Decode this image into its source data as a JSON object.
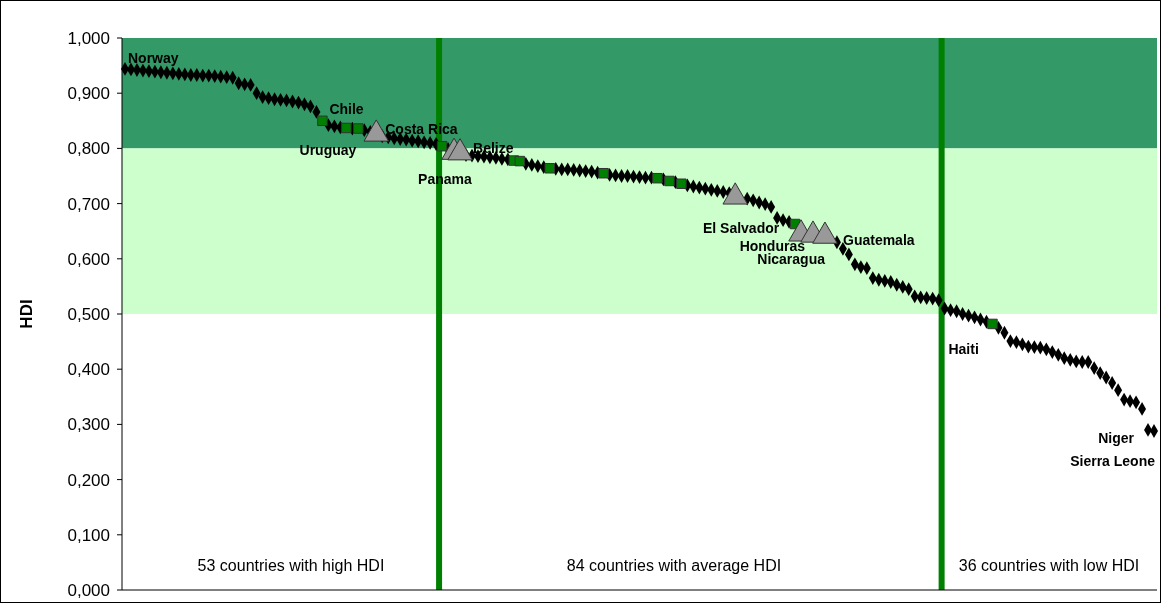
{
  "chart_data": {
    "type": "scatter",
    "ylabel": "HDI",
    "tick_labels": "y",
    "ylim": [
      0,
      1
    ],
    "yticks": [
      {
        "value": 0,
        "label": "0,000"
      },
      {
        "value": 0.1,
        "label": "0,100"
      },
      {
        "value": 0.2,
        "label": "0,200"
      },
      {
        "value": 0.3,
        "label": "0,300"
      },
      {
        "value": 0.4,
        "label": "0,400"
      },
      {
        "value": 0.5,
        "label": "0,500"
      },
      {
        "value": 0.6,
        "label": "0,600"
      },
      {
        "value": 0.7,
        "label": "0,700"
      },
      {
        "value": 0.8,
        "label": "0,800"
      },
      {
        "value": 0.9,
        "label": "0,900"
      },
      {
        "value": 1,
        "label": "1,000"
      }
    ],
    "bands": [
      {
        "axis": "y",
        "from": 0.8,
        "to": 1,
        "color": "#339966"
      },
      {
        "axis": "y",
        "from": 0.5,
        "to": 0.8,
        "color": "#ccffcc"
      }
    ],
    "categories": [
      null,
      null,
      null,
      null,
      null,
      null,
      null,
      null,
      null,
      null,
      null,
      null,
      null,
      null,
      null,
      null,
      null,
      null,
      null,
      null,
      null,
      null,
      null,
      null,
      null,
      null,
      null,
      null,
      null,
      null,
      null,
      null,
      null,
      null,
      null,
      null,
      null,
      null,
      null,
      null,
      null,
      null,
      null,
      null,
      null,
      null,
      null,
      null,
      null,
      null,
      null,
      null,
      null,
      null,
      null,
      null,
      null,
      null,
      null,
      null,
      null,
      null,
      null,
      null,
      null,
      null,
      null,
      null,
      null,
      null,
      null,
      null,
      null,
      null,
      null,
      null,
      null,
      null,
      null,
      null,
      null,
      null,
      null,
      null,
      null,
      null,
      null,
      null,
      null,
      null,
      null,
      null,
      null,
      null,
      null,
      null,
      null,
      null,
      null,
      null,
      null,
      null,
      null,
      null,
      null,
      null,
      null,
      null,
      null,
      null,
      null,
      null,
      null,
      null,
      null,
      null,
      null,
      null,
      null,
      null,
      null,
      null,
      null,
      null,
      null,
      null,
      null,
      null,
      null,
      null,
      null,
      null,
      null,
      null,
      null,
      null,
      null,
      null,
      null,
      null,
      null,
      null,
      null,
      null,
      null,
      null,
      null,
      null,
      null,
      null,
      null,
      null,
      null,
      null,
      null,
      null,
      null,
      null,
      null,
      null,
      null,
      null,
      null,
      null,
      null,
      null,
      null,
      null,
      null,
      null,
      null,
      null,
      null
    ],
    "series": [
      {
        "color": "#000000",
        "marker": "diamond",
        "values": [
          0.944,
          0.943,
          0.942,
          0.941,
          0.94,
          0.939,
          0.938,
          0.937,
          0.936,
          0.935,
          0.934,
          0.933,
          0.933,
          0.932,
          0.932,
          0.931,
          0.93,
          0.929,
          0.928,
          0.918,
          0.916,
          0.915,
          0.9,
          0.893,
          0.891,
          0.889,
          0.888,
          0.887,
          0.885,
          0.883,
          0.88,
          0.876,
          0.866,
          null,
          0.842,
          0.84,
          0.838,
          null,
          0.836,
          null,
          0.833,
          0.83,
          null,
          0.822,
          0.82,
          0.818,
          0.817,
          0.816,
          0.814,
          0.813,
          0.811,
          0.81,
          0.808,
          null,
          0.799,
          null,
          null,
          0.788,
          0.787,
          0.786,
          0.785,
          0.784,
          0.783,
          0.781,
          0.78,
          null,
          null,
          0.772,
          0.77,
          0.768,
          0.766,
          null,
          0.763,
          0.762,
          0.762,
          0.761,
          0.76,
          0.759,
          0.758,
          0.756,
          null,
          0.752,
          0.751,
          0.75,
          0.75,
          0.749,
          0.748,
          0.747,
          0.747,
          null,
          0.744,
          null,
          0.739,
          null,
          0.733,
          0.731,
          0.729,
          0.727,
          0.725,
          0.723,
          0.721,
          0.719,
          null,
          null,
          0.709,
          0.706,
          0.702,
          0.699,
          0.694,
          0.674,
          0.67,
          0.667,
          null,
          null,
          null,
          null,
          null,
          null,
          null,
          0.63,
          0.618,
          0.608,
          0.59,
          0.585,
          0.583,
          0.565,
          0.562,
          0.56,
          0.558,
          0.553,
          0.549,
          0.545,
          0.532,
          0.53,
          0.529,
          0.528,
          0.525,
          0.51,
          0.507,
          0.505,
          0.5,
          0.497,
          0.494,
          0.49,
          0.486,
          null,
          0.475,
          0.466,
          0.451,
          0.449,
          0.445,
          0.441,
          0.44,
          0.439,
          0.436,
          0.431,
          0.426,
          0.42,
          0.417,
          0.414,
          0.413,
          0.413,
          0.402,
          0.393,
          0.385,
          0.375,
          0.362,
          0.345,
          0.342,
          0.34,
          0.328,
          0.29,
          0.288
        ]
      },
      {
        "color": "#008000",
        "marker": "square",
        "values": [
          null,
          null,
          null,
          null,
          null,
          null,
          null,
          null,
          null,
          null,
          null,
          null,
          null,
          null,
          null,
          null,
          null,
          null,
          null,
          null,
          null,
          null,
          null,
          null,
          null,
          null,
          null,
          null,
          null,
          null,
          null,
          null,
          null,
          0.85,
          null,
          null,
          null,
          0.837,
          null,
          0.836,
          null,
          null,
          null,
          null,
          null,
          null,
          null,
          null,
          null,
          null,
          null,
          null,
          null,
          0.804,
          null,
          null,
          null,
          null,
          null,
          null,
          null,
          null,
          null,
          null,
          null,
          0.778,
          0.777,
          null,
          null,
          null,
          null,
          0.764,
          null,
          null,
          null,
          null,
          null,
          null,
          null,
          null,
          0.755,
          null,
          null,
          null,
          null,
          null,
          null,
          null,
          null,
          0.746,
          null,
          0.741,
          null,
          0.736,
          null,
          null,
          null,
          null,
          null,
          null,
          null,
          null,
          null,
          null,
          null,
          null,
          null,
          null,
          null,
          null,
          null,
          null,
          0.663,
          null,
          null,
          null,
          null,
          null,
          null,
          null,
          null,
          null,
          null,
          null,
          null,
          null,
          null,
          null,
          null,
          null,
          null,
          null,
          null,
          null,
          null,
          null,
          null,
          null,
          null,
          null,
          null,
          null,
          null,
          null,
          null,
          0.482,
          null,
          null,
          null,
          null,
          null,
          null,
          null,
          null,
          null,
          null,
          null,
          null,
          null,
          null,
          null,
          null,
          null,
          null,
          null,
          null,
          null,
          null,
          null,
          null,
          null,
          null,
          null
        ]
      },
      {
        "color": "#999999",
        "marker": "triangle",
        "values": [
          null,
          null,
          null,
          null,
          null,
          null,
          null,
          null,
          null,
          null,
          null,
          null,
          null,
          null,
          null,
          null,
          null,
          null,
          null,
          null,
          null,
          null,
          null,
          null,
          null,
          null,
          null,
          null,
          null,
          null,
          null,
          null,
          null,
          null,
          null,
          null,
          null,
          null,
          null,
          null,
          null,
          null,
          0.826,
          null,
          null,
          null,
          null,
          null,
          null,
          null,
          null,
          null,
          null,
          null,
          null,
          0.793,
          0.792,
          null,
          null,
          null,
          null,
          null,
          null,
          null,
          null,
          null,
          null,
          null,
          null,
          null,
          null,
          null,
          null,
          null,
          null,
          null,
          null,
          null,
          null,
          null,
          null,
          null,
          null,
          null,
          null,
          null,
          null,
          null,
          null,
          null,
          null,
          null,
          null,
          null,
          null,
          null,
          null,
          null,
          null,
          null,
          null,
          null,
          0.712,
          null,
          null,
          null,
          null,
          null,
          null,
          null,
          null,
          null,
          null,
          0.645,
          null,
          0.643,
          null,
          0.641,
          null,
          null,
          null,
          null,
          null,
          null,
          null,
          null,
          null,
          null,
          null,
          null,
          null,
          null,
          null,
          null,
          null,
          null,
          null,
          null,
          null,
          null,
          null,
          null,
          null,
          null,
          null,
          null,
          null,
          null,
          null,
          null,
          null,
          null,
          null,
          null,
          null,
          null,
          null,
          null,
          null,
          null,
          null,
          null,
          null,
          null,
          null,
          null,
          null,
          null,
          null,
          null,
          null,
          null,
          null
        ]
      }
    ],
    "annotations": [
      {
        "text": "Norway",
        "y": 0.944
      },
      {
        "text": "Chile",
        "y": 0.85
      },
      {
        "text": "Uruguay",
        "y": 0.837
      },
      {
        "text": "Costa Rica",
        "y": 0.826
      },
      {
        "text": "Panama",
        "y": 0.804
      },
      {
        "text": "Belize",
        "y": 0.792
      },
      {
        "text": "El Salvador",
        "y": 0.712
      },
      "Honduras",
      "Nicaragua",
      "Guatemala",
      {
        "text": "Haiti",
        "y": 0.482
      },
      "Niger",
      "Sierra Leone",
      "53 countries with high HDI",
      "84 countries with average HDI",
      "36 countries with low HDI"
    ]
  }
}
